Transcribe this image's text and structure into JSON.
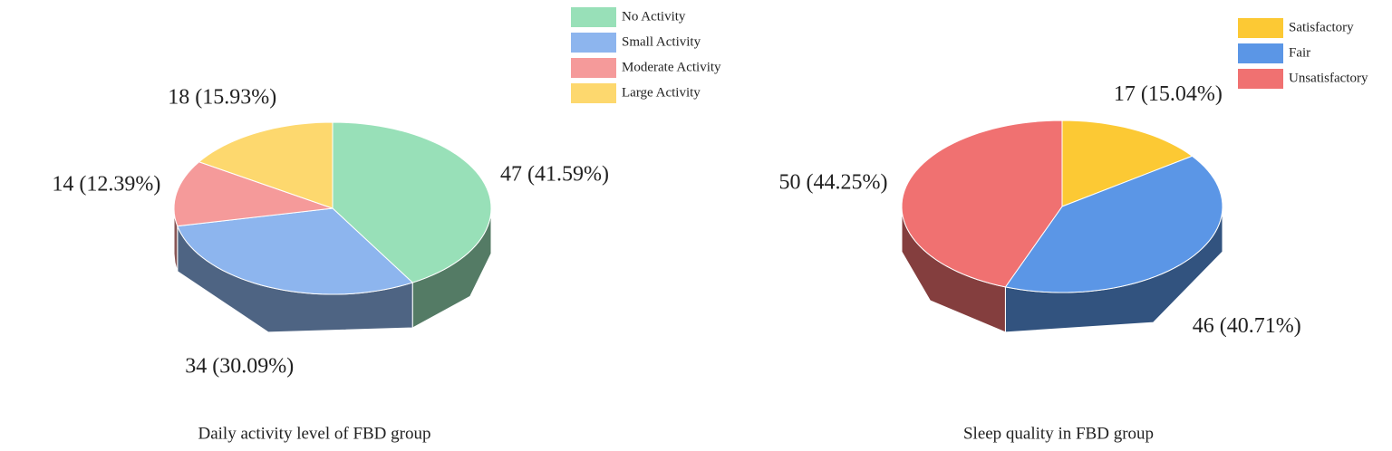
{
  "chart_data": [
    {
      "type": "pie",
      "title": "Daily activity level of FBD group",
      "categories": [
        "No Activity",
        "Small Activity",
        "Moderate Activity",
        "Large Activity"
      ],
      "values": [
        47,
        34,
        14,
        18
      ],
      "value_labels": [
        "47 (41.59%)",
        "34 (30.09%)",
        "14 (12.39%)",
        "18 (15.93%)"
      ],
      "colors": [
        "#98e0b8",
        "#8db5ee",
        "#f59a9a",
        "#fdd86e"
      ]
    },
    {
      "type": "pie",
      "title": "Sleep quality in FBD group",
      "categories": [
        "Satisfactory",
        "Fair",
        "Unsatisfactory"
      ],
      "values": [
        17,
        46,
        50
      ],
      "value_labels": [
        "17 (15.04%)",
        "46 (40.71%)",
        "50 (44.25%)"
      ],
      "colors": [
        "#fcc934",
        "#5b96e6",
        "#f07171"
      ]
    }
  ]
}
